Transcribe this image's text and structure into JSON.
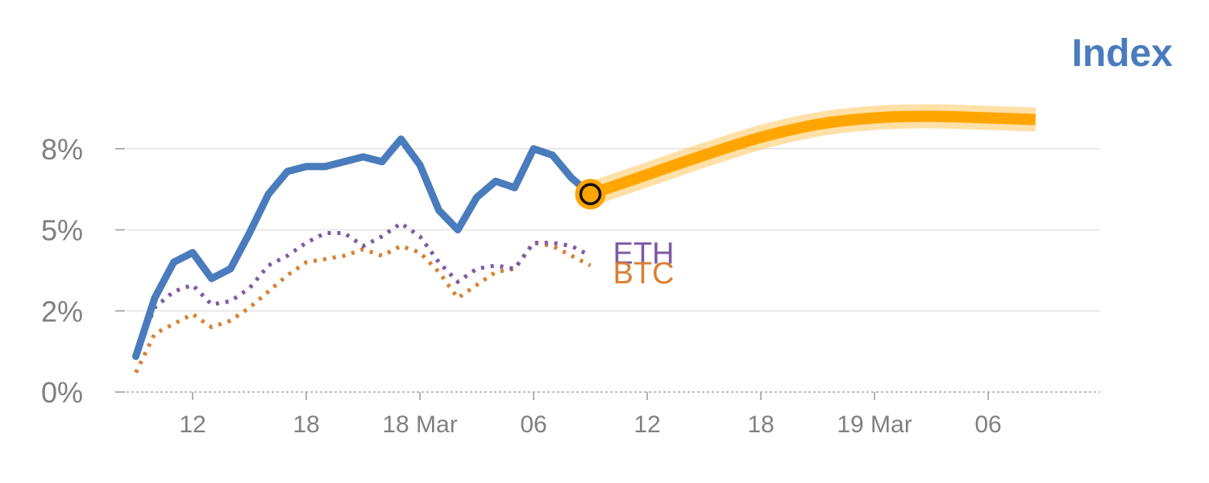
{
  "chart_data": {
    "type": "line",
    "title": "Index",
    "xlabel": "",
    "ylabel": "",
    "ylim": [
      0,
      9
    ],
    "xlim": [
      0,
      50
    ],
    "y_ticks": [
      {
        "value": 0,
        "label": "0%"
      },
      {
        "value": 2.5,
        "label": "2%"
      },
      {
        "value": 5,
        "label": "5%"
      },
      {
        "value": 7.5,
        "label": "8%"
      }
    ],
    "x_ticks": [
      {
        "value": 4,
        "label": "12"
      },
      {
        "value": 10,
        "label": "18"
      },
      {
        "value": 16,
        "label": "18 Mar"
      },
      {
        "value": 22,
        "label": "06"
      },
      {
        "value": 28,
        "label": "12"
      },
      {
        "value": 34,
        "label": "18"
      },
      {
        "value": 40,
        "label": "19 Mar"
      },
      {
        "value": 46,
        "label": "06"
      }
    ],
    "grid": true,
    "series": [
      {
        "name": "Index",
        "color": "#4a7bbd",
        "style": "solid",
        "points": [
          [
            1,
            1.1
          ],
          [
            2,
            2.9
          ],
          [
            3,
            4.0
          ],
          [
            4,
            4.3
          ],
          [
            5,
            3.5
          ],
          [
            6,
            3.8
          ],
          [
            7,
            4.9
          ],
          [
            8,
            6.1
          ],
          [
            9,
            6.8
          ],
          [
            10,
            6.95
          ],
          [
            11,
            6.95
          ],
          [
            12,
            7.1
          ],
          [
            13,
            7.25
          ],
          [
            14,
            7.1
          ],
          [
            15,
            7.8
          ],
          [
            16,
            7.0
          ],
          [
            17,
            5.6
          ],
          [
            18,
            5.0
          ],
          [
            19,
            6.0
          ],
          [
            20,
            6.5
          ],
          [
            21,
            6.3
          ],
          [
            22,
            7.5
          ],
          [
            23,
            7.3
          ],
          [
            24,
            6.6
          ],
          [
            25,
            6.1
          ]
        ]
      },
      {
        "name": "ETH",
        "color": "#7e5aa6",
        "style": "dotted",
        "points": [
          [
            1,
            1.2
          ],
          [
            2,
            2.6
          ],
          [
            3,
            3.1
          ],
          [
            4,
            3.3
          ],
          [
            5,
            2.7
          ],
          [
            6,
            2.8
          ],
          [
            7,
            3.2
          ],
          [
            8,
            3.9
          ],
          [
            9,
            4.2
          ],
          [
            10,
            4.6
          ],
          [
            11,
            4.9
          ],
          [
            12,
            4.9
          ],
          [
            13,
            4.5
          ],
          [
            14,
            4.8
          ],
          [
            15,
            5.2
          ],
          [
            16,
            4.8
          ],
          [
            17,
            4.0
          ],
          [
            18,
            3.4
          ],
          [
            19,
            3.8
          ],
          [
            20,
            3.9
          ],
          [
            21,
            3.8
          ],
          [
            22,
            4.6
          ],
          [
            23,
            4.6
          ],
          [
            24,
            4.5
          ],
          [
            25,
            4.2
          ]
        ]
      },
      {
        "name": "BTC",
        "color": "#d98032",
        "style": "dotted",
        "points": [
          [
            1,
            0.6
          ],
          [
            2,
            1.8
          ],
          [
            3,
            2.1
          ],
          [
            4,
            2.4
          ],
          [
            5,
            2.0
          ],
          [
            6,
            2.2
          ],
          [
            7,
            2.6
          ],
          [
            8,
            3.1
          ],
          [
            9,
            3.6
          ],
          [
            10,
            4.0
          ],
          [
            11,
            4.1
          ],
          [
            12,
            4.2
          ],
          [
            13,
            4.4
          ],
          [
            14,
            4.2
          ],
          [
            15,
            4.5
          ],
          [
            16,
            4.3
          ],
          [
            17,
            3.7
          ],
          [
            18,
            2.9
          ],
          [
            19,
            3.3
          ],
          [
            20,
            3.7
          ],
          [
            21,
            3.8
          ],
          [
            22,
            4.6
          ],
          [
            23,
            4.5
          ],
          [
            24,
            4.2
          ],
          [
            25,
            3.9
          ]
        ]
      },
      {
        "name": "",
        "color": "#ffa500",
        "style": "forecast",
        "points": [
          [
            25,
            6.1
          ],
          [
            28,
            6.7
          ],
          [
            31,
            7.3
          ],
          [
            34,
            7.85
          ],
          [
            37,
            8.25
          ],
          [
            40,
            8.45
          ],
          [
            43,
            8.5
          ],
          [
            46,
            8.45
          ],
          [
            48.5,
            8.4
          ]
        ]
      }
    ],
    "annotations": [
      {
        "text": "ETH",
        "series": "ETH"
      },
      {
        "text": "BTC",
        "series": "BTC"
      }
    ]
  }
}
